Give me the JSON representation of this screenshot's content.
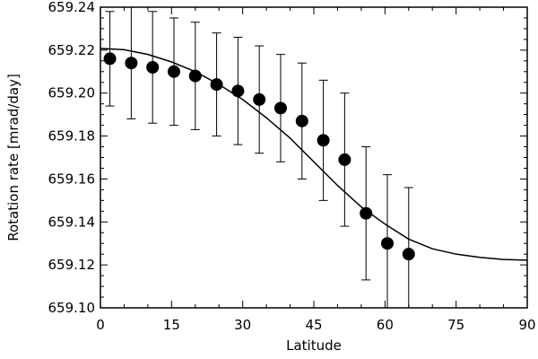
{
  "chart_data": {
    "type": "scatter",
    "xlabel": "Latitude",
    "ylabel": "Rotation rate [mrad/day]",
    "xlim": [
      0,
      90
    ],
    "ylim": [
      659.1,
      659.24
    ],
    "xticks": [
      0,
      15,
      30,
      45,
      60,
      75,
      90
    ],
    "xtick_labels": [
      "0",
      "15",
      "30",
      "45",
      "60",
      "75",
      "90"
    ],
    "yticks": [
      659.1,
      659.12,
      659.14,
      659.16,
      659.18,
      659.2,
      659.22,
      659.24
    ],
    "ytick_labels": [
      "659.10",
      "659.12",
      "659.14",
      "659.16",
      "659.18",
      "659.20",
      "659.22",
      "659.24"
    ],
    "grid": false,
    "series": [
      {
        "kind": "points_with_errorbars",
        "x": [
          2,
          6.5,
          11,
          15.5,
          20,
          24.5,
          29,
          33.5,
          38,
          42.5,
          47,
          51.5,
          56,
          60.5,
          65
        ],
        "y": [
          659.216,
          659.214,
          659.212,
          659.21,
          659.208,
          659.204,
          659.201,
          659.197,
          659.193,
          659.187,
          659.178,
          659.169,
          659.144,
          659.13,
          659.125
        ],
        "yerr": [
          0.022,
          0.026,
          0.026,
          0.025,
          0.025,
          0.024,
          0.025,
          0.025,
          0.025,
          0.027,
          0.028,
          0.031,
          0.031,
          0.032,
          0.031
        ]
      },
      {
        "kind": "line",
        "x": [
          0,
          5,
          10,
          15,
          20,
          25,
          30,
          35,
          40,
          45,
          50,
          55,
          60,
          65,
          70,
          75,
          80,
          85,
          90
        ],
        "y": [
          659.2208,
          659.2202,
          659.218,
          659.2145,
          659.21,
          659.204,
          659.197,
          659.1885,
          659.179,
          659.168,
          659.157,
          659.147,
          659.139,
          659.132,
          659.1275,
          659.125,
          659.1235,
          659.1225,
          659.1222
        ]
      }
    ]
  }
}
